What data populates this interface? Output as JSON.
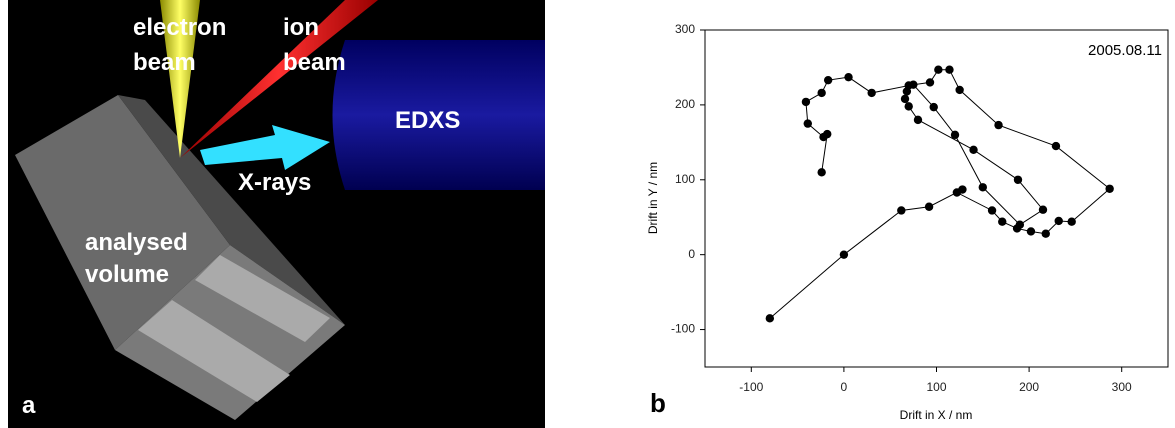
{
  "panel_a": {
    "electron": "electron",
    "electron_beam": "beam",
    "ion": "ion",
    "ion_beam": "beam",
    "edxs": "EDXS",
    "xrays": "X-rays",
    "analysed": "analysed",
    "volume": "volume",
    "letter": "a"
  },
  "panel_b_letter": "b",
  "chart_data": {
    "type": "line",
    "annotation": "2005.08.11",
    "xlabel": "Drift in X / nm",
    "ylabel": "Drift in Y / nm",
    "x": [
      -80,
      0,
      62,
      92,
      128,
      122,
      160,
      171,
      187,
      202,
      218,
      232,
      246,
      287,
      229,
      167,
      125,
      114,
      102,
      93,
      70,
      68,
      66,
      70,
      80,
      140,
      188,
      215,
      190,
      150,
      120,
      97,
      75,
      30,
      5,
      -17,
      -24,
      -41,
      -39,
      -22,
      -18,
      -24
    ],
    "values": [
      -85,
      0,
      59,
      64,
      87,
      83,
      59,
      44,
      35,
      31,
      28,
      45,
      44,
      88,
      145,
      173,
      220,
      247,
      247,
      230,
      226,
      218,
      208,
      198,
      180,
      140,
      100,
      60,
      40,
      90,
      160,
      197,
      227,
      216,
      237,
      233,
      216,
      204,
      175,
      157,
      161,
      110
    ],
    "color": "#000000",
    "xlim": [
      -150,
      350
    ],
    "ylim": [
      -150,
      300
    ],
    "xticks": [
      -100,
      0,
      100,
      200,
      300
    ],
    "yticks": [
      -100,
      0,
      100,
      200,
      300
    ],
    "grid": false
  }
}
